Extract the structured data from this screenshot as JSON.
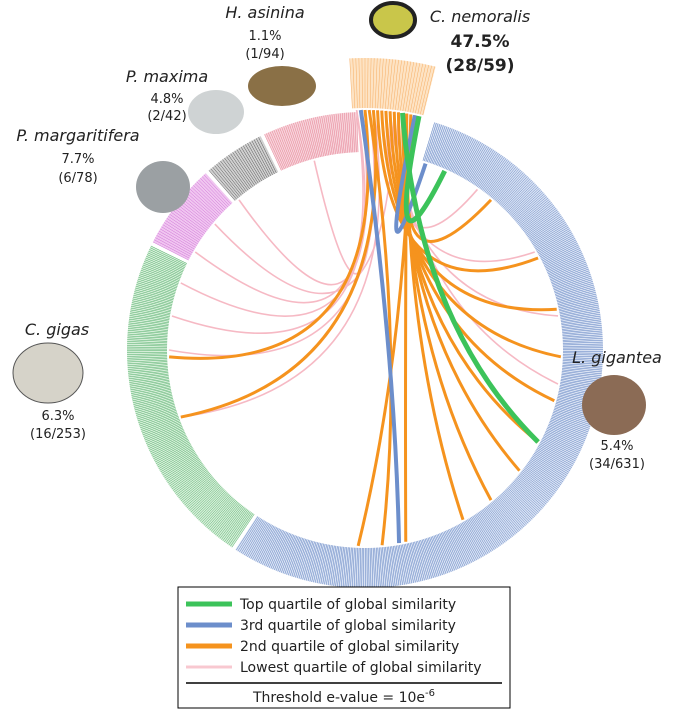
{
  "species": [
    {
      "name": "H. asinina",
      "percent": "1.1%",
      "count": "(1/94)"
    },
    {
      "name": "C. nemoralis",
      "percent": "47.5%",
      "count": "(28/59)"
    },
    {
      "name": "P. maxima",
      "percent": "4.8%",
      "count": "(2/42)"
    },
    {
      "name": "P. margaritifera",
      "percent": "7.7%",
      "count": "(6/78)"
    },
    {
      "name": "C. gigas",
      "percent": "6.3%",
      "count": "(16/253)"
    },
    {
      "name": "L. gigantea",
      "percent": "5.4%",
      "count": "(34/631)"
    }
  ],
  "legend": {
    "entries": [
      "Top quartile of global similarity",
      "3rd quartile of global similarity",
      "2nd quartile of global similarity",
      "Lowest quartile of global similarity"
    ],
    "threshold": {
      "text": "Threshold e-value = 10e",
      "exponent": "-6"
    }
  }
}
